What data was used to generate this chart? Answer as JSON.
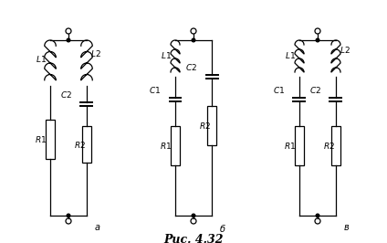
{
  "title": "Рис. 4.32",
  "title_fontsize": 9,
  "background_color": "#ffffff",
  "fig_width": 4.24,
  "fig_height": 2.66,
  "dpi": 100
}
